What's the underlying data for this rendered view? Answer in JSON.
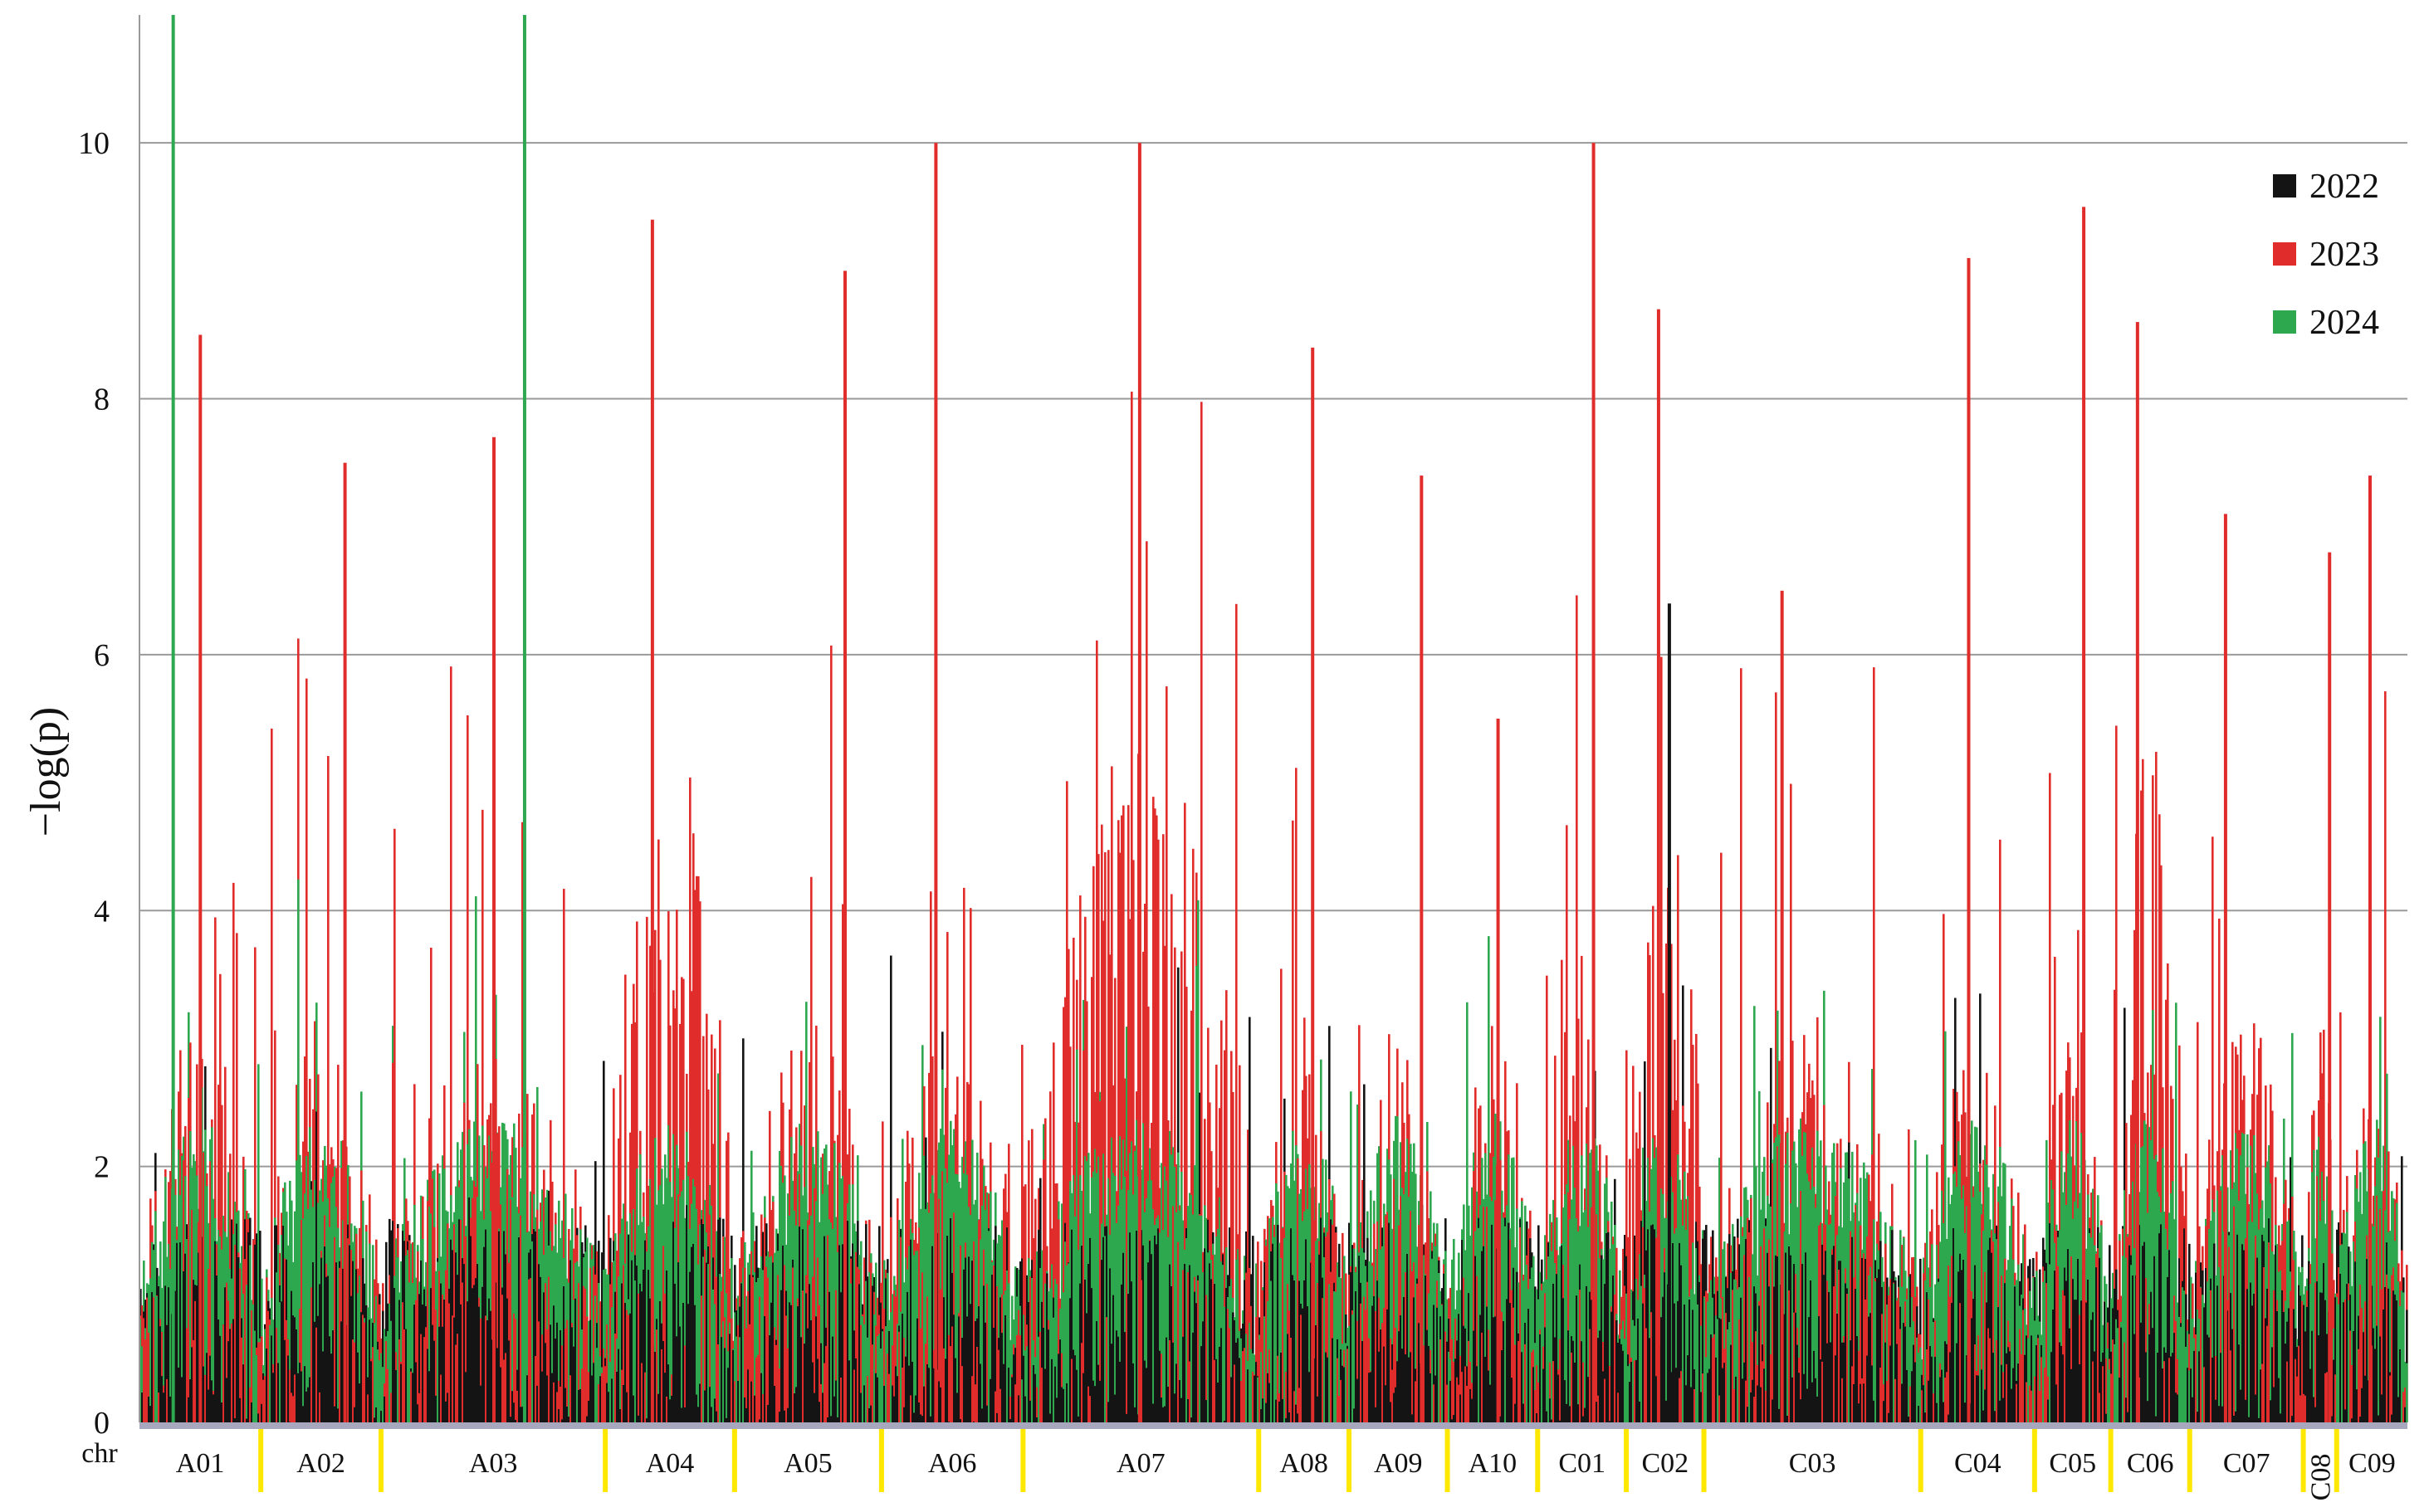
{
  "chart_data": {
    "type": "bar",
    "title": "",
    "xlabel": "chr",
    "ylabel": "−log(p)",
    "ylim": [
      0,
      11
    ],
    "yticks": [
      0,
      2,
      4,
      6,
      8,
      10
    ],
    "grid": "horizontal",
    "legend_position": "top-right",
    "series": [
      {
        "name": "2022",
        "color": "#141414"
      },
      {
        "name": "2023",
        "color": "#e02d2b"
      },
      {
        "name": "2024",
        "color": "#2ea84f"
      }
    ],
    "chromosomes": [
      {
        "label": "A01",
        "start": 0,
        "end": 0.0535
      },
      {
        "label": "A02",
        "start": 0.0535,
        "end": 0.1065
      },
      {
        "label": "A03",
        "start": 0.1065,
        "end": 0.2054
      },
      {
        "label": "A04",
        "start": 0.2054,
        "end": 0.2624
      },
      {
        "label": "A05",
        "start": 0.2624,
        "end": 0.3272
      },
      {
        "label": "A06",
        "start": 0.3272,
        "end": 0.3896
      },
      {
        "label": "A07",
        "start": 0.3896,
        "end": 0.4935
      },
      {
        "label": "A08",
        "start": 0.4935,
        "end": 0.5333
      },
      {
        "label": "A09",
        "start": 0.5333,
        "end": 0.5767
      },
      {
        "label": "A10",
        "start": 0.5767,
        "end": 0.6165
      },
      {
        "label": "C01",
        "start": 0.6165,
        "end": 0.6556
      },
      {
        "label": "C02",
        "start": 0.6556,
        "end": 0.6898
      },
      {
        "label": "C03",
        "start": 0.6898,
        "end": 0.7854
      },
      {
        "label": "C04",
        "start": 0.7854,
        "end": 0.8356
      },
      {
        "label": "C05",
        "start": 0.8356,
        "end": 0.8692
      },
      {
        "label": "C06",
        "start": 0.8692,
        "end": 0.904
      },
      {
        "label": "C07",
        "start": 0.904,
        "end": 0.9541
      },
      {
        "label": "C08",
        "start": 0.9541,
        "end": 0.9688
      },
      {
        "label": "C09",
        "start": 0.9688,
        "end": 1.0
      }
    ],
    "peaks": [
      {
        "chr": "A01",
        "series": "2024",
        "value": 11
      },
      {
        "chr": "A01",
        "series": "2023",
        "value": 8.5
      },
      {
        "chr": "A02",
        "series": "2023",
        "value": 7.5
      },
      {
        "chr": "A03",
        "series": "2024",
        "value": 11
      },
      {
        "chr": "A03",
        "series": "2023",
        "value": 7.7
      },
      {
        "chr": "A04",
        "series": "2023",
        "value": 9.4
      },
      {
        "chr": "A05",
        "series": "2023",
        "value": 9.0
      },
      {
        "chr": "A06",
        "series": "2023",
        "value": 10.0
      },
      {
        "chr": "A07",
        "series": "2023",
        "value": 10.0
      },
      {
        "chr": "A08",
        "series": "2023",
        "value": 8.4
      },
      {
        "chr": "A09",
        "series": "2023",
        "value": 7.4
      },
      {
        "chr": "A10",
        "series": "2023",
        "value": 5.5
      },
      {
        "chr": "C01",
        "series": "2023",
        "value": 10.0
      },
      {
        "chr": "C02",
        "series": "2023",
        "value": 8.7
      },
      {
        "chr": "C02",
        "series": "2022",
        "value": 6.4
      },
      {
        "chr": "C03",
        "series": "2023",
        "value": 6.5
      },
      {
        "chr": "C04",
        "series": "2023",
        "value": 9.1
      },
      {
        "chr": "C05",
        "series": "2023",
        "value": 9.5
      },
      {
        "chr": "C06",
        "series": "2023",
        "value": 8.6
      },
      {
        "chr": "C07",
        "series": "2023",
        "value": 7.1
      },
      {
        "chr": "C08",
        "series": "2023",
        "value": 6.8
      },
      {
        "chr": "C09",
        "series": "2023",
        "value": 7.4
      }
    ]
  }
}
